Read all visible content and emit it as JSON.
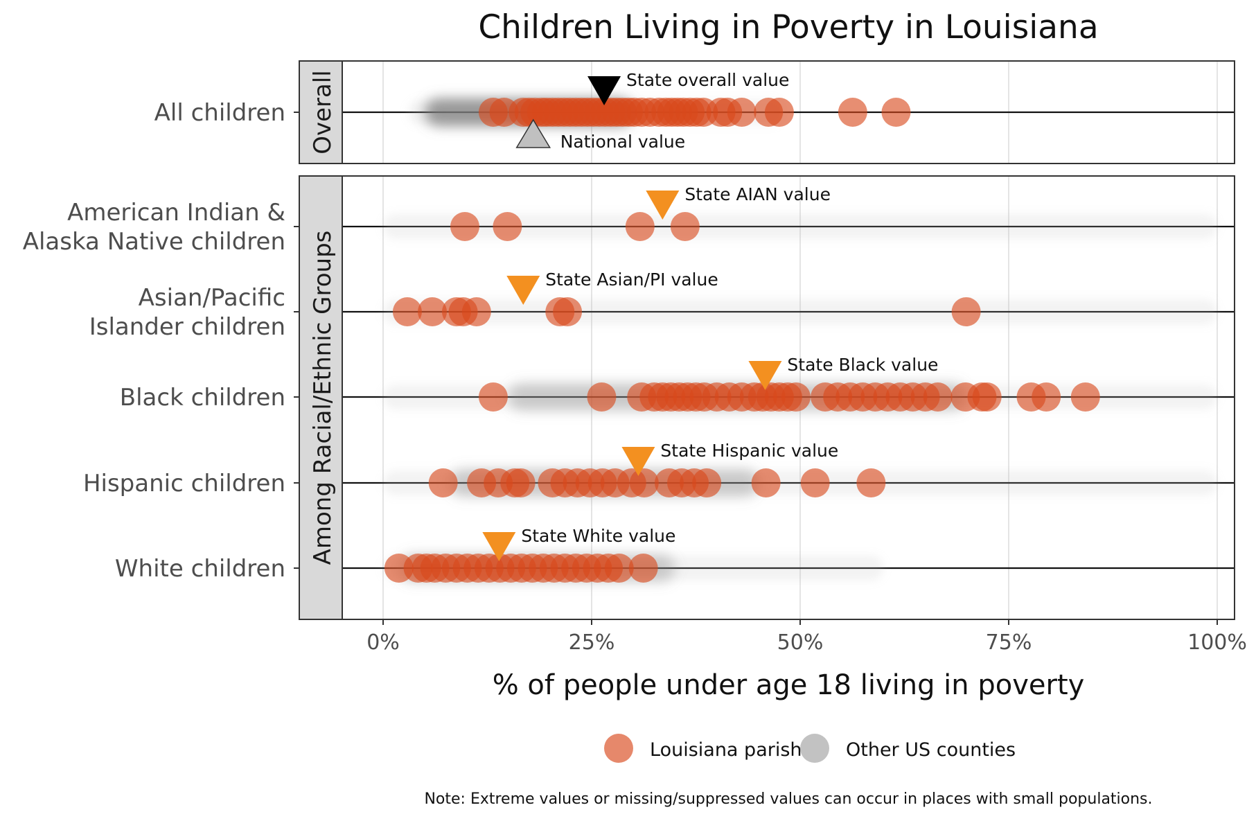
{
  "chart_data": {
    "type": "scatter",
    "title": "Children Living in Poverty in Louisiana",
    "xlabel": "% of people under age 18 living in poverty",
    "xlim": [
      0,
      100
    ],
    "x_ticks": [
      "0%",
      "25%",
      "50%",
      "75%",
      "100%"
    ],
    "x_tick_values": [
      0,
      25,
      50,
      75,
      100
    ],
    "grid": true,
    "legend_position": "bottom",
    "legend": [
      {
        "label": "Louisiana parish",
        "color": "#d9481c"
      },
      {
        "label": "Other US counties",
        "color": "#999999"
      }
    ],
    "note": "Note: Extreme values or missing/suppressed values can occur in places with small populations.",
    "colors": {
      "parish": "#d9481c",
      "state_marker": "#f39020",
      "national_marker": "#c0c0c0",
      "overall_marker": "#000000"
    },
    "panels": [
      {
        "strip": "Overall",
        "rows": [
          {
            "label": "All children",
            "parish_values": [
              13.2,
              14.5,
              16.8,
              17.5,
              18.2,
              19.0,
              19.6,
              20.3,
              21.0,
              21.7,
              22.4,
              23.1,
              23.8,
              24.5,
              25.2,
              25.9,
              26.6,
              27.3,
              28.0,
              28.7,
              29.4,
              30.1,
              31.0,
              32.0,
              33.1,
              33.9,
              34.6,
              35.3,
              36.0,
              36.8,
              37.6,
              38.4,
              40.5,
              41.3,
              43.0,
              46.2,
              47.5,
              56.3,
              61.5
            ],
            "county_range": [
              3,
              48
            ],
            "county_dense": [
              5,
              30
            ],
            "markers": [
              {
                "label": "State overall value",
                "value": 26.5,
                "kind": "state_overall"
              },
              {
                "label": "National value",
                "value": 18.0,
                "kind": "national"
              }
            ]
          }
        ]
      },
      {
        "strip": "Among Racial/Ethnic Groups",
        "rows": [
          {
            "label": "American Indian & Alaska Native children",
            "parish_values": [
              9.8,
              14.9,
              30.8,
              36.2
            ],
            "county_range": [
              0,
              100
            ],
            "markers": [
              {
                "label": "State AIAN value",
                "value": 33.5,
                "kind": "state"
              }
            ]
          },
          {
            "label": "Asian/Pacific Islander children",
            "parish_values": [
              2.9,
              5.9,
              8.8,
              9.6,
              11.2,
              21.2,
              22.1,
              69.9
            ],
            "county_range": [
              0,
              100
            ],
            "markers": [
              {
                "label": "State Asian/PI value",
                "value": 16.8,
                "kind": "state"
              }
            ]
          },
          {
            "label": "Black children",
            "parish_values": [
              13.2,
              26.2,
              31.0,
              32.5,
              33.5,
              34.5,
              35.5,
              36.5,
              37.5,
              38.5,
              40.0,
              41.5,
              43.0,
              44.5,
              45.5,
              46.5,
              47.5,
              48.5,
              49.5,
              53.0,
              54.5,
              56.0,
              57.5,
              59.0,
              60.5,
              62.0,
              63.5,
              65.0,
              66.5,
              69.8,
              71.8,
              72.4,
              77.7,
              79.5,
              84.2
            ],
            "county_range": [
              0,
              100
            ],
            "county_dense": [
              15,
              70
            ],
            "markers": [
              {
                "label": "State Black value",
                "value": 45.8,
                "kind": "state"
              }
            ]
          },
          {
            "label": "Hispanic children",
            "parish_values": [
              7.2,
              11.8,
              13.8,
              15.8,
              16.5,
              20.3,
              21.8,
              23.3,
              24.8,
              26.3,
              27.8,
              29.8,
              31.3,
              34.3,
              35.8,
              37.3,
              38.8,
              45.9,
              51.8,
              58.5
            ],
            "county_range": [
              0,
              100
            ],
            "county_dense": [
              8,
              45
            ],
            "markers": [
              {
                "label": "State Hispanic value",
                "value": 30.6,
                "kind": "state"
              }
            ]
          },
          {
            "label": "White children",
            "parish_values": [
              1.9,
              4.2,
              5.2,
              6.2,
              7.5,
              8.8,
              10.1,
              11.4,
              12.7,
              14.0,
              15.3,
              16.6,
              17.9,
              19.2,
              20.5,
              21.8,
              23.1,
              24.4,
              25.7,
              27.0,
              28.3,
              31.2
            ],
            "county_range": [
              0,
              60
            ],
            "county_dense": [
              2,
              35
            ],
            "markers": [
              {
                "label": "State White value",
                "value": 13.9,
                "kind": "state"
              }
            ]
          }
        ]
      }
    ]
  }
}
